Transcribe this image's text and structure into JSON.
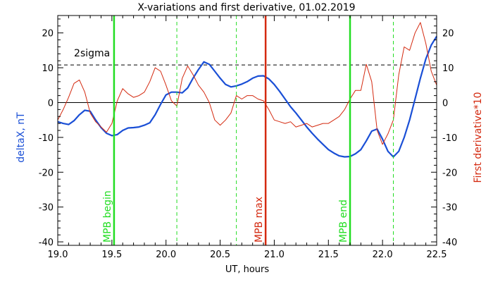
{
  "chart_data": {
    "type": "line",
    "title": "X-variations and first derivative, 01.02.2019",
    "xlabel": "UT, hours",
    "ylabel_left": "deltaX, nT",
    "ylabel_right": "First derivative*10",
    "xlim": [
      19.0,
      22.5
    ],
    "ylim": [
      -41,
      25
    ],
    "x_ticks": [
      19.0,
      19.5,
      20.0,
      20.5,
      21.0,
      21.5,
      22.0,
      22.5
    ],
    "x_tick_labels": [
      "19.0",
      "19.5",
      "20.0",
      "20.5",
      "21.0",
      "21.5",
      "22.0",
      "22.5"
    ],
    "y_ticks": [
      -40,
      -30,
      -20,
      -10,
      0,
      10,
      20
    ],
    "y_tick_labels": [
      "-40",
      "-30",
      "-20",
      "-10",
      "0",
      "10",
      "20"
    ],
    "colors": {
      "deltaX": "#1a4fd6",
      "derivative": "#d42a10",
      "mpb_line": "#22dd22",
      "mpb_max": "#d42a10",
      "sigma": "#000000",
      "zero": "#000000"
    },
    "sigma": {
      "label": "2sigma",
      "value": 10.8
    },
    "zero_line": 0,
    "vlines": [
      {
        "x": 19.52,
        "kind": "solid",
        "label": "MPB begin",
        "color": "#22dd22"
      },
      {
        "x": 20.92,
        "kind": "solid",
        "label": "MPB max",
        "color": "#d42a10"
      },
      {
        "x": 21.7,
        "kind": "solid",
        "label": "MPB end",
        "color": "#22dd22"
      },
      {
        "x": 20.1,
        "kind": "dashed",
        "label": "",
        "color": "#22dd22"
      },
      {
        "x": 20.65,
        "kind": "dashed",
        "label": "",
        "color": "#22dd22"
      },
      {
        "x": 22.1,
        "kind": "dashed",
        "label": "",
        "color": "#22dd22"
      }
    ],
    "series": [
      {
        "name": "deltaX",
        "axis": "left",
        "x": [
          19.0,
          19.05,
          19.1,
          19.15,
          19.2,
          19.25,
          19.3,
          19.35,
          19.4,
          19.45,
          19.5,
          19.55,
          19.6,
          19.65,
          19.7,
          19.75,
          19.8,
          19.85,
          19.9,
          19.95,
          20.0,
          20.05,
          20.1,
          20.15,
          20.2,
          20.25,
          20.3,
          20.35,
          20.4,
          20.45,
          20.5,
          20.55,
          20.6,
          20.65,
          20.7,
          20.75,
          20.8,
          20.85,
          20.9,
          20.95,
          21.0,
          21.05,
          21.1,
          21.15,
          21.2,
          21.25,
          21.3,
          21.35,
          21.4,
          21.45,
          21.5,
          21.55,
          21.6,
          21.65,
          21.7,
          21.75,
          21.8,
          21.85,
          21.9,
          21.95,
          22.0,
          22.05,
          22.1,
          22.15,
          22.2,
          22.25,
          22.3,
          22.35,
          22.4,
          22.45,
          22.5
        ],
        "y": [
          -5.5,
          -6.0,
          -6.3,
          -5.2,
          -3.5,
          -2.2,
          -2.5,
          -5.0,
          -7.2,
          -8.8,
          -9.5,
          -9.2,
          -8.0,
          -7.3,
          -7.2,
          -7.0,
          -6.5,
          -5.8,
          -3.5,
          -0.5,
          2.2,
          3.0,
          3.0,
          2.8,
          4.2,
          7.0,
          9.5,
          11.7,
          11.0,
          9.0,
          7.0,
          5.2,
          4.5,
          4.8,
          5.3,
          6.0,
          7.0,
          7.6,
          7.7,
          6.8,
          5.2,
          3.2,
          1.0,
          -1.2,
          -3.0,
          -5.0,
          -7.0,
          -8.8,
          -10.5,
          -12.0,
          -13.5,
          -14.5,
          -15.3,
          -15.6,
          -15.5,
          -14.7,
          -13.5,
          -11.0,
          -8.2,
          -7.6,
          -10.5,
          -14.0,
          -15.6,
          -14.0,
          -10.0,
          -5.0,
          1.0,
          7.0,
          12.5,
          16.5,
          19.0
        ]
      },
      {
        "name": "First derivative*10",
        "axis": "right",
        "x": [
          19.0,
          19.05,
          19.1,
          19.15,
          19.2,
          19.25,
          19.3,
          19.35,
          19.4,
          19.45,
          19.5,
          19.55,
          19.6,
          19.65,
          19.7,
          19.75,
          19.8,
          19.85,
          19.9,
          19.95,
          20.0,
          20.05,
          20.1,
          20.15,
          20.2,
          20.25,
          20.3,
          20.35,
          20.4,
          20.45,
          20.5,
          20.55,
          20.6,
          20.65,
          20.7,
          20.75,
          20.8,
          20.85,
          20.9,
          20.95,
          21.0,
          21.05,
          21.1,
          21.15,
          21.2,
          21.25,
          21.3,
          21.35,
          21.4,
          21.45,
          21.5,
          21.55,
          21.6,
          21.65,
          21.7,
          21.75,
          21.8,
          21.85,
          21.9,
          21.95,
          22.0,
          22.05,
          22.1,
          22.15,
          22.2,
          22.25,
          22.3,
          22.35,
          22.4,
          22.45,
          22.5
        ],
        "y": [
          -5.0,
          -2.0,
          1.5,
          5.5,
          6.5,
          3.0,
          -3.0,
          -5.5,
          -7.0,
          -8.5,
          -6.0,
          0.5,
          4.0,
          2.5,
          1.5,
          2.0,
          3.0,
          6.0,
          10.0,
          9.0,
          5.0,
          0.5,
          -1.0,
          7.0,
          10.5,
          8.0,
          5.0,
          3.0,
          0.0,
          -5.0,
          -6.5,
          -5.0,
          -3.0,
          2.0,
          1.0,
          2.0,
          2.0,
          1.0,
          0.5,
          -2.0,
          -5.0,
          -5.5,
          -6.0,
          -5.5,
          -7.0,
          -6.5,
          -6.0,
          -7.0,
          -6.5,
          -6.0,
          -6.0,
          -5.0,
          -4.0,
          -2.0,
          1.0,
          3.5,
          3.5,
          11.0,
          6.0,
          -8.0,
          -12.0,
          -9.0,
          -5.0,
          8.0,
          16.0,
          15.0,
          20.0,
          23.0,
          17.0,
          9.0,
          5.0
        ]
      }
    ]
  }
}
